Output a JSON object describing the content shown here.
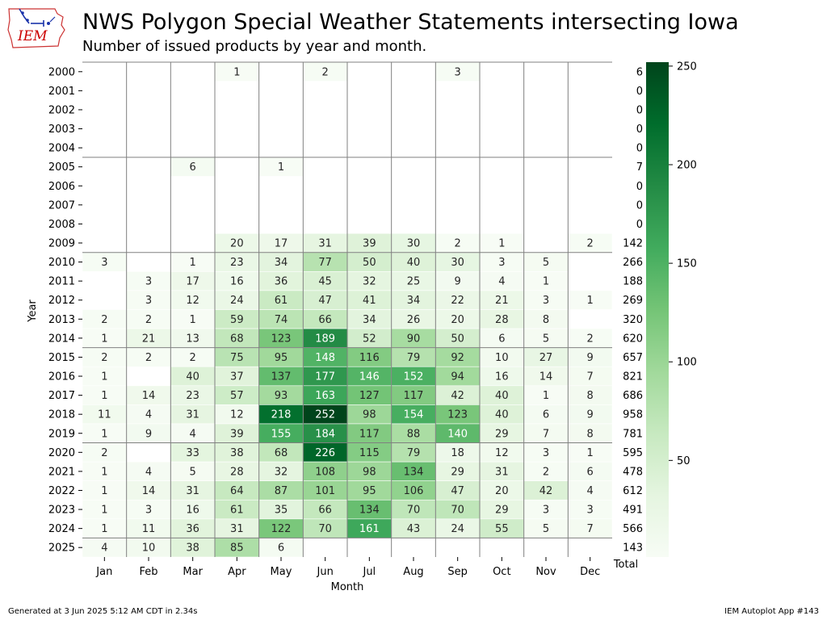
{
  "header": {
    "logo_text": "IEM",
    "title": "NWS Polygon Special Weather Statements intersecting Iowa",
    "subtitle": "Number of issued products by year and month."
  },
  "footer": {
    "generated": "Generated at 3 Jun 2025 5:12 AM CDT in 2.34s",
    "app": "IEM Autoplot App #143"
  },
  "colors": {
    "low": "#f7fcf5",
    "high": "#00441b",
    "grid": "#808080"
  },
  "chart_data": {
    "type": "heatmap",
    "xlabel": "Month",
    "ylabel": "Year",
    "total_label": "Total",
    "x": [
      "Jan",
      "Feb",
      "Mar",
      "Apr",
      "May",
      "Jun",
      "Jul",
      "Aug",
      "Sep",
      "Oct",
      "Nov",
      "Dec"
    ],
    "y": [
      "2000",
      "2001",
      "2002",
      "2003",
      "2004",
      "2005",
      "2006",
      "2007",
      "2008",
      "2009",
      "2010",
      "2011",
      "2012",
      "2013",
      "2014",
      "2015",
      "2016",
      "2017",
      "2018",
      "2019",
      "2020",
      "2021",
      "2022",
      "2023",
      "2024",
      "2025"
    ],
    "values": [
      [
        null,
        null,
        null,
        1,
        null,
        2,
        null,
        null,
        3,
        null,
        null,
        null
      ],
      [
        null,
        null,
        null,
        null,
        null,
        null,
        null,
        null,
        null,
        null,
        null,
        null
      ],
      [
        null,
        null,
        null,
        null,
        null,
        null,
        null,
        null,
        null,
        null,
        null,
        null
      ],
      [
        null,
        null,
        null,
        null,
        null,
        null,
        null,
        null,
        null,
        null,
        null,
        null
      ],
      [
        null,
        null,
        null,
        null,
        null,
        null,
        null,
        null,
        null,
        null,
        null,
        null
      ],
      [
        null,
        null,
        6,
        null,
        1,
        null,
        null,
        null,
        null,
        null,
        null,
        null
      ],
      [
        null,
        null,
        null,
        null,
        null,
        null,
        null,
        null,
        null,
        null,
        null,
        null
      ],
      [
        null,
        null,
        null,
        null,
        null,
        null,
        null,
        null,
        null,
        null,
        null,
        null
      ],
      [
        null,
        null,
        null,
        null,
        null,
        null,
        null,
        null,
        null,
        null,
        null,
        null
      ],
      [
        null,
        null,
        null,
        20,
        17,
        31,
        39,
        30,
        2,
        1,
        null,
        2
      ],
      [
        3,
        null,
        1,
        23,
        34,
        77,
        50,
        40,
        30,
        3,
        5,
        null
      ],
      [
        null,
        3,
        17,
        16,
        36,
        45,
        32,
        25,
        9,
        4,
        1,
        null
      ],
      [
        null,
        3,
        12,
        24,
        61,
        47,
        41,
        34,
        22,
        21,
        3,
        1
      ],
      [
        2,
        2,
        1,
        59,
        74,
        66,
        34,
        26,
        20,
        28,
        8,
        null
      ],
      [
        1,
        21,
        13,
        68,
        123,
        189,
        52,
        90,
        50,
        6,
        5,
        2
      ],
      [
        2,
        2,
        2,
        75,
        95,
        148,
        116,
        79,
        92,
        10,
        27,
        9
      ],
      [
        1,
        null,
        40,
        37,
        137,
        177,
        146,
        152,
        94,
        16,
        14,
        7
      ],
      [
        1,
        14,
        23,
        57,
        93,
        163,
        127,
        117,
        42,
        40,
        1,
        8
      ],
      [
        11,
        4,
        31,
        12,
        218,
        252,
        98,
        154,
        123,
        40,
        6,
        9
      ],
      [
        1,
        9,
        4,
        39,
        155,
        184,
        117,
        88,
        140,
        29,
        7,
        8
      ],
      [
        2,
        null,
        33,
        38,
        68,
        226,
        115,
        79,
        18,
        12,
        3,
        1
      ],
      [
        1,
        4,
        5,
        28,
        32,
        108,
        98,
        134,
        29,
        31,
        2,
        6
      ],
      [
        1,
        14,
        31,
        64,
        87,
        101,
        95,
        106,
        47,
        20,
        42,
        4
      ],
      [
        1,
        3,
        16,
        61,
        35,
        66,
        134,
        70,
        70,
        29,
        3,
        3
      ],
      [
        1,
        11,
        36,
        31,
        122,
        70,
        161,
        43,
        24,
        55,
        5,
        7
      ],
      [
        4,
        10,
        38,
        85,
        6,
        null,
        null,
        null,
        null,
        null,
        null,
        null
      ]
    ],
    "totals": [
      6,
      0,
      0,
      0,
      0,
      7,
      0,
      0,
      0,
      142,
      266,
      188,
      269,
      320,
      620,
      657,
      821,
      686,
      958,
      781,
      595,
      478,
      612,
      491,
      566,
      143
    ],
    "colorbar": {
      "min": 1,
      "max": 252,
      "ticks": [
        50,
        100,
        150,
        200,
        250
      ]
    }
  }
}
